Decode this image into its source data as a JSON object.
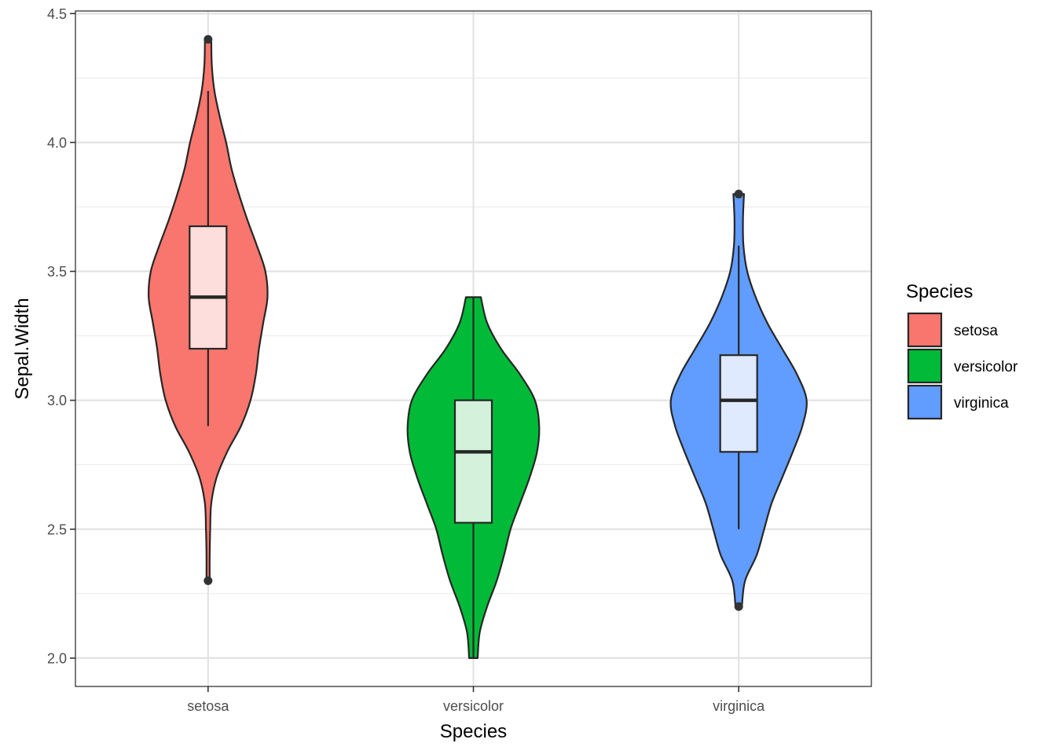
{
  "chart_data": {
    "type": "violin",
    "xlabel": "Species",
    "ylabel": "Sepal.Width",
    "ylim": [
      1.89,
      4.51
    ],
    "y_ticks": [
      2.0,
      2.5,
      3.0,
      3.5,
      4.0,
      4.5
    ],
    "y_tick_labels": [
      "2.0",
      "2.5",
      "3.0",
      "3.5",
      "4.0",
      "4.5"
    ],
    "categories": [
      "setosa",
      "versicolor",
      "virginica"
    ],
    "grid": true,
    "legend": {
      "title": "Species",
      "placement": "right",
      "entries": [
        "setosa",
        "versicolor",
        "virginica"
      ]
    },
    "series": [
      {
        "name": "setosa",
        "color": "#F8766D",
        "box_color": "#FDDEDC",
        "violin_profile": [
          [
            2.3,
            0.015
          ],
          [
            2.4,
            0.015
          ],
          [
            2.5,
            0.02
          ],
          [
            2.6,
            0.03
          ],
          [
            2.7,
            0.08
          ],
          [
            2.8,
            0.18
          ],
          [
            2.9,
            0.31
          ],
          [
            3.0,
            0.4
          ],
          [
            3.1,
            0.45
          ],
          [
            3.2,
            0.48
          ],
          [
            3.3,
            0.52
          ],
          [
            3.4,
            0.56
          ],
          [
            3.5,
            0.54
          ],
          [
            3.6,
            0.46
          ],
          [
            3.7,
            0.37
          ],
          [
            3.8,
            0.29
          ],
          [
            3.9,
            0.22
          ],
          [
            4.0,
            0.17
          ],
          [
            4.1,
            0.11
          ],
          [
            4.2,
            0.06
          ],
          [
            4.3,
            0.035
          ],
          [
            4.4,
            0.03
          ]
        ],
        "box": {
          "min": 2.9,
          "q1": 3.2,
          "median": 3.4,
          "q3": 3.675,
          "max": 4.2
        },
        "outliers": [
          4.4,
          2.3
        ]
      },
      {
        "name": "versicolor",
        "color": "#00BA38",
        "box_color": "#D3F1DB",
        "violin_profile": [
          [
            2.0,
            0.04
          ],
          [
            2.1,
            0.06
          ],
          [
            2.2,
            0.13
          ],
          [
            2.3,
            0.22
          ],
          [
            2.4,
            0.29
          ],
          [
            2.5,
            0.35
          ],
          [
            2.6,
            0.44
          ],
          [
            2.7,
            0.53
          ],
          [
            2.8,
            0.6
          ],
          [
            2.9,
            0.62
          ],
          [
            3.0,
            0.58
          ],
          [
            3.1,
            0.44
          ],
          [
            3.2,
            0.26
          ],
          [
            3.3,
            0.13
          ],
          [
            3.4,
            0.07
          ]
        ],
        "box": {
          "min": 2.0,
          "q1": 2.525,
          "median": 2.8,
          "q3": 3.0,
          "max": 3.4
        },
        "outliers": []
      },
      {
        "name": "virginica",
        "color": "#619CFF",
        "box_color": "#DFE9FF",
        "violin_profile": [
          [
            2.2,
            0.03
          ],
          [
            2.3,
            0.06
          ],
          [
            2.4,
            0.17
          ],
          [
            2.5,
            0.24
          ],
          [
            2.6,
            0.31
          ],
          [
            2.7,
            0.41
          ],
          [
            2.8,
            0.51
          ],
          [
            2.9,
            0.6
          ],
          [
            3.0,
            0.64
          ],
          [
            3.1,
            0.55
          ],
          [
            3.2,
            0.41
          ],
          [
            3.3,
            0.27
          ],
          [
            3.4,
            0.16
          ],
          [
            3.5,
            0.08
          ],
          [
            3.6,
            0.045
          ],
          [
            3.7,
            0.04
          ],
          [
            3.8,
            0.05
          ]
        ],
        "box": {
          "min": 2.5,
          "q1": 2.8,
          "median": 3.0,
          "q3": 3.175,
          "max": 3.6
        },
        "outliers": [
          3.8,
          2.2
        ]
      }
    ]
  }
}
